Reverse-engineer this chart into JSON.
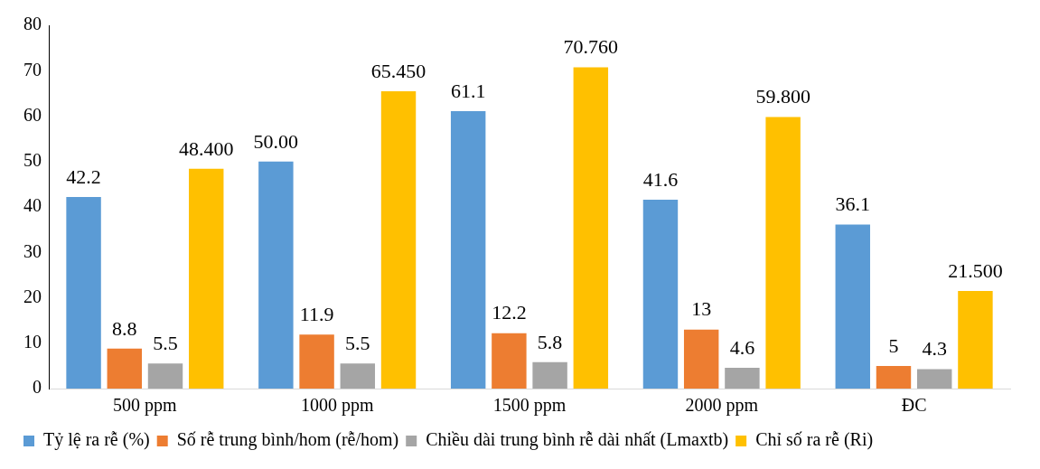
{
  "chart_data": {
    "type": "bar",
    "categories": [
      "500 ppm",
      "1000 ppm",
      "1500 ppm",
      "2000 ppm",
      "ĐC"
    ],
    "series": [
      {
        "name": "Tỷ lệ ra rễ (%)",
        "color": "#5b9bd5",
        "values": [
          42.2,
          50.0,
          61.1,
          41.6,
          36.1
        ],
        "value_labels": [
          "42.2",
          "50.00",
          "61.1",
          "41.6",
          "36.1"
        ]
      },
      {
        "name": "Số rễ trung bình/hom (rễ/hom)",
        "color": "#ed7d31",
        "values": [
          8.8,
          11.9,
          12.2,
          13,
          5
        ],
        "value_labels": [
          "8.8",
          "11.9",
          "12.2",
          "13",
          "5"
        ]
      },
      {
        "name": "Chiều dài trung bình rễ dài nhất (Lmaxtb)",
        "color": "#a5a5a5",
        "values": [
          5.5,
          5.5,
          5.8,
          4.6,
          4.3
        ],
        "value_labels": [
          "5.5",
          "5.5",
          "5.8",
          "4.6",
          "4.3"
        ]
      },
      {
        "name": "Chỉ số ra rễ (Ri)",
        "color": "#ffc000",
        "values": [
          48.4,
          65.45,
          70.76,
          59.8,
          21.5
        ],
        "value_labels": [
          "48.400",
          "65.450",
          "70.760",
          "59.800",
          "21.500"
        ]
      }
    ],
    "ylim": [
      0,
      80
    ],
    "yticks": [
      0,
      10,
      20,
      30,
      40,
      50,
      60,
      70,
      80
    ],
    "grid": false,
    "legend": "bottom"
  }
}
